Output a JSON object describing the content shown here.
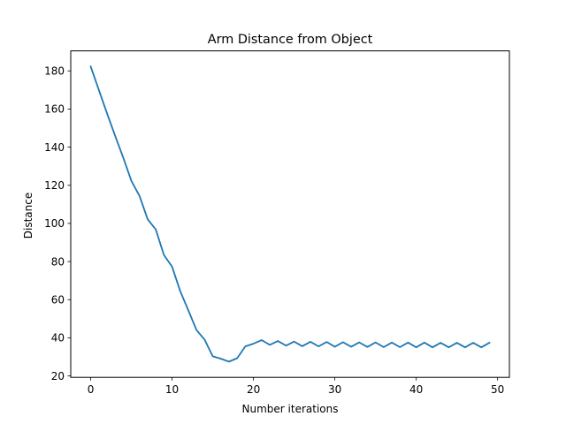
{
  "chart_data": {
    "type": "line",
    "title": "Arm Distance from Object",
    "xlabel": "Number iterations",
    "ylabel": "Distance",
    "xlim": [
      -2.45,
      51.45
    ],
    "ylim": [
      19.25,
      190.5
    ],
    "xticks": [
      0,
      10,
      20,
      30,
      40,
      50
    ],
    "yticks": [
      20,
      40,
      60,
      80,
      100,
      120,
      140,
      160,
      180
    ],
    "grid": false,
    "line_color": "#1f77b4",
    "x": [
      0,
      1,
      2,
      3,
      4,
      5,
      6,
      7,
      8,
      9,
      10,
      11,
      12,
      13,
      14,
      15,
      16,
      17,
      18,
      19,
      20,
      21,
      22,
      23,
      24,
      25,
      26,
      27,
      28,
      29,
      30,
      31,
      32,
      33,
      34,
      35,
      36,
      37,
      38,
      39,
      40,
      41,
      42,
      43,
      44,
      45,
      46,
      47,
      48,
      49
    ],
    "series": [
      {
        "values": [
          182.3,
          170.0,
          157.8,
          146.0,
          134.5,
          122.3,
          114.4,
          102.2,
          96.8,
          83.4,
          77.3,
          64.5,
          54.4,
          44.1,
          39.0,
          30.3,
          29.0,
          27.5,
          29.3,
          35.5,
          36.9,
          38.8,
          36.3,
          38.3,
          35.9,
          38.0,
          35.6,
          37.9,
          35.5,
          37.8,
          35.3,
          37.7,
          35.3,
          37.6,
          35.2,
          37.6,
          35.1,
          37.5,
          35.1,
          37.5,
          35.0,
          37.5,
          35.0,
          37.4,
          35.0,
          37.4,
          35.0,
          37.4,
          35.0,
          37.4
        ]
      }
    ]
  }
}
